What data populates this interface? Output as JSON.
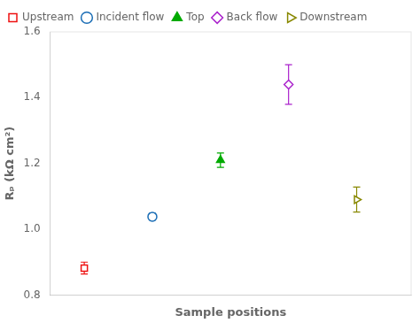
{
  "chart_data": {
    "type": "errorbar",
    "xlabel": "Sample positions",
    "ylabel": "Rₚ (kΩ cm²)",
    "xlim": [
      0.5,
      5.8
    ],
    "ylim": [
      0.8,
      1.6
    ],
    "yticks": [
      0.8,
      {
        "value": 1.0,
        "label": "1.0"
      },
      1.2,
      1.4,
      1.6
    ],
    "tick_labels": "y",
    "grid": false,
    "legend": "upper left",
    "series": [
      {
        "name": "Upstream",
        "color": "#ee1111",
        "marker": "square_open",
        "x": [
          1
        ],
        "values": [
          0.882
        ],
        "yerr": [
          0.018
        ]
      },
      {
        "name": "Incident flow",
        "color": "#1a6db5",
        "marker": "circle_open",
        "x": [
          2
        ],
        "values": [
          1.038
        ],
        "yerr": [
          0.01
        ]
      },
      {
        "name": "Top",
        "color": "#00aa00",
        "marker": "triangle_up_filled",
        "x": [
          3
        ],
        "values": [
          1.21
        ],
        "yerr": [
          0.022
        ]
      },
      {
        "name": "Back flow",
        "color": "#aa22cc",
        "marker": "diamond_open",
        "x": [
          4
        ],
        "values": [
          1.44
        ],
        "yerr": [
          0.06
        ]
      },
      {
        "name": "Downstream",
        "color": "#888800",
        "marker": "triangle_right_open",
        "x": [
          5
        ],
        "values": [
          1.09
        ],
        "yerr": [
          0.038
        ]
      }
    ]
  }
}
